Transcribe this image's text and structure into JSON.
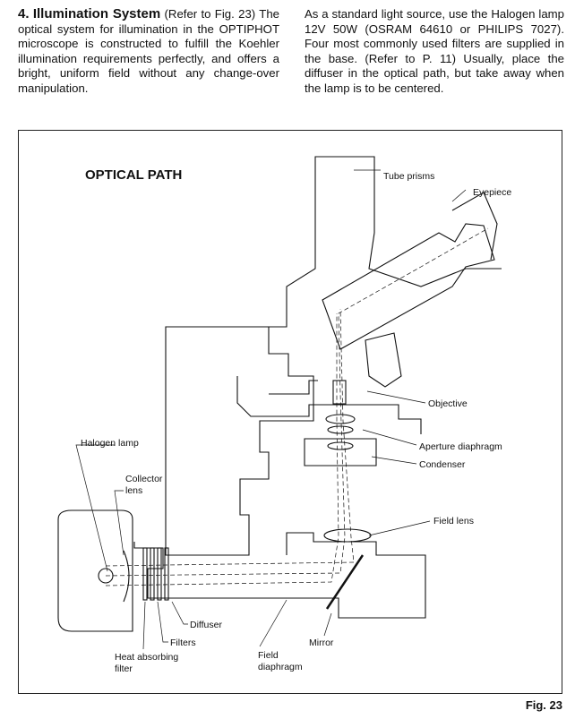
{
  "left_column": {
    "heading_number": "4.",
    "heading_title": "Illumination System",
    "heading_ref": "(Refer to Fig. 23)",
    "paragraph": "The optical system for illumination in the OPTIPHOT microscope is constructed to fulfill the Koehler illumination requirements perfectly, and offers a bright, uniform field without any change-over manipulation."
  },
  "right_column": {
    "paragraph": "As a standard light source, use the Halogen lamp 12V 50W (OSRAM 64610 or PHILIPS 7027). Four most commonly used filters are supplied in the base. (Refer to P. 11) Usually, place the diffuser in the optical path, but take away when the lamp is to be centered."
  },
  "figure": {
    "title": "OPTICAL PATH",
    "caption": "Fig. 23",
    "labels": {
      "tube_prisms": "Tube prisms",
      "eyepiece": "Eyepiece",
      "objective": "Objective",
      "aperture_diaphragm": "Aperture diaphragm",
      "condenser": "Condenser",
      "field_lens": "Field lens",
      "halogen_lamp": "Halogen lamp",
      "collector_lens_1": "Collector",
      "collector_lens_2": "lens",
      "diffuser": "Diffuser",
      "filters": "Filters",
      "heat_filter_1": "Heat absorbing",
      "heat_filter_2": "filter",
      "mirror": "Mirror",
      "field_diaphragm_1": "Field",
      "field_diaphragm_2": "diaphragm"
    }
  }
}
